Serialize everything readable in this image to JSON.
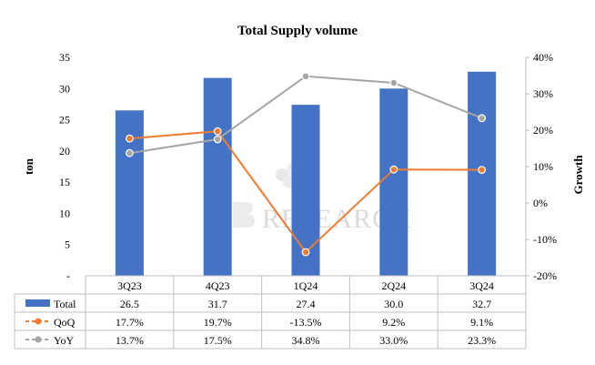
{
  "chart_data": {
    "type": "bar",
    "title": "Total Supply volume",
    "categories": [
      "3Q23",
      "4Q23",
      "1Q24",
      "2Q24",
      "3Q24"
    ],
    "ylabel": "ton",
    "y2label": "Growth",
    "ylim": [
      0,
      35
    ],
    "y_ticks": [
      "-",
      "5",
      "10",
      "15",
      "20",
      "25",
      "30",
      "35"
    ],
    "y2lim": [
      -20,
      40
    ],
    "y2_ticks": [
      "-20%",
      "-10%",
      "0%",
      "10%",
      "20%",
      "30%",
      "40%"
    ],
    "series": [
      {
        "name": "Total",
        "type": "bar",
        "axis": "left",
        "color": "#4472C4",
        "values": [
          26.5,
          31.7,
          27.4,
          30.0,
          32.7
        ],
        "labels": [
          "26.5",
          "31.7",
          "27.4",
          "30.0",
          "32.7"
        ]
      },
      {
        "name": "QoQ",
        "type": "line",
        "axis": "right",
        "color": "#ED7D31",
        "values": [
          17.7,
          19.7,
          -13.5,
          9.2,
          9.1
        ],
        "labels": [
          "17.7%",
          "19.7%",
          "-13.5%",
          "9.2%",
          "9.1%"
        ]
      },
      {
        "name": "YoY",
        "type": "line",
        "axis": "right",
        "color": "#A5A5A5",
        "values": [
          13.7,
          17.5,
          34.8,
          33.0,
          23.3
        ],
        "labels": [
          "13.7%",
          "17.5%",
          "34.8%",
          "33.0%",
          "23.3%"
        ]
      }
    ],
    "data_table": true,
    "grid": false,
    "watermark": "RESEARCH"
  }
}
